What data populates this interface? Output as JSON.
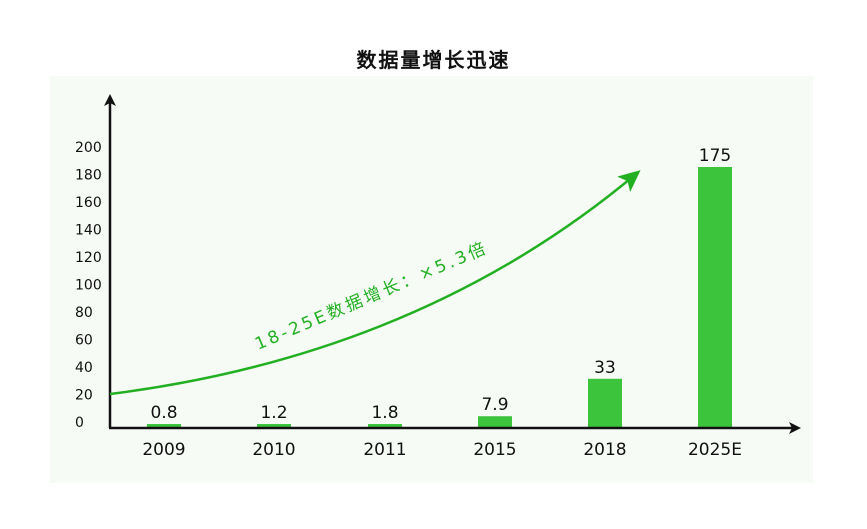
{
  "chart_data": {
    "type": "bar",
    "title": "数据量增长迅速",
    "xlabel": "",
    "ylabel": "",
    "ylim": [
      0,
      200
    ],
    "yticks": [
      0,
      20,
      40,
      60,
      80,
      100,
      120,
      140,
      160,
      180,
      200
    ],
    "categories": [
      "2009",
      "2010",
      "2011",
      "2015",
      "2018",
      "2025E"
    ],
    "values": [
      0.8,
      1.2,
      1.8,
      7.9,
      33,
      175
    ],
    "value_labels": [
      "0.8",
      "1.2",
      "1.8",
      "7.9",
      "33",
      "175"
    ],
    "grid": false,
    "legend": null,
    "bar_color": "#3cc43c",
    "annotation": {
      "text": "18-25E数据增长：×5.3倍",
      "color": "#22b022",
      "type": "curved-arrow"
    }
  }
}
